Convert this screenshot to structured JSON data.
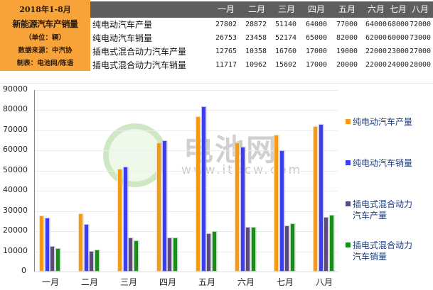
{
  "title_block": {
    "line1": "2018年1-8月",
    "line2": "新能源汽车产销量",
    "line3": "（单位：辆）",
    "line4": "数据来源：中汽协",
    "line5": "制表：电池网/陈语"
  },
  "table": {
    "months": [
      "一月",
      "二月",
      "三月",
      "四月",
      "五月",
      "六月",
      "七月",
      "八月"
    ],
    "rows": [
      {
        "label": "纯电动汽车产量",
        "values": [
          "27802",
          "28872",
          "51140",
          "64000",
          "77000",
          "64000",
          "68000",
          "72000"
        ]
      },
      {
        "label": "纯电动汽车销量",
        "values": [
          "26753",
          "23458",
          "52174",
          "65000",
          "82000",
          "62000",
          "60000",
          "73000"
        ]
      },
      {
        "label": "插电式混合动力汽车产量",
        "values": [
          "12765",
          "10358",
          "16760",
          "17000",
          "19000",
          "22000",
          "23000",
          "27000"
        ]
      },
      {
        "label": "插电式混合动力汽车销量",
        "values": [
          "11717",
          "10962",
          "15602",
          "17000",
          "20000",
          "22000",
          "24000",
          "28000"
        ]
      }
    ]
  },
  "watermark": {
    "text": "电池网",
    "url": "www.itdcw.com"
  },
  "colors": {
    "title_bg": "#f8a33a",
    "header_bg": "#5e5e5e",
    "series1": "#f59a14",
    "series2": "#3c3cf0",
    "series3": "#5c4a7c",
    "series4": "#1a8c1a",
    "legend_text": "#1a3a7a"
  },
  "chart_data": {
    "type": "bar",
    "title": "2018年1-8月新能源汽车产销量（单位：辆）",
    "categories": [
      "一月",
      "二月",
      "三月",
      "四月",
      "五月",
      "六月",
      "七月",
      "八月"
    ],
    "series": [
      {
        "name": "纯电动汽车产量",
        "color": "#f59a14",
        "values": [
          27802,
          28872,
          51140,
          64000,
          77000,
          64000,
          68000,
          72000
        ]
      },
      {
        "name": "纯电动汽车销量",
        "color": "#3c3cf0",
        "values": [
          26753,
          23458,
          52174,
          65000,
          82000,
          62000,
          60000,
          73000
        ]
      },
      {
        "name": "插电式混合动力汽车产量",
        "color": "#5c4a7c",
        "values": [
          12765,
          10358,
          16760,
          17000,
          19000,
          22000,
          23000,
          27000
        ]
      },
      {
        "name": "插电式混合动力汽车销量",
        "color": "#1a8c1a",
        "values": [
          11717,
          10962,
          15602,
          17000,
          20000,
          22000,
          24000,
          28000
        ]
      }
    ],
    "yticks": [
      "0",
      "10000",
      "20000",
      "30000",
      "40000",
      "50000",
      "60000",
      "70000",
      "80000",
      "90000"
    ],
    "xlabel": "",
    "ylabel": "",
    "ylim": [
      0,
      90000
    ],
    "grid": true,
    "legend_position": "right",
    "legend": [
      {
        "line1": "纯电动汽车产量",
        "line2": ""
      },
      {
        "line1": "纯电动汽车销量",
        "line2": ""
      },
      {
        "line1": "插电式混合动力",
        "line2": "汽车产量"
      },
      {
        "line1": "插电式混合动力",
        "line2": "汽车销量"
      }
    ]
  }
}
